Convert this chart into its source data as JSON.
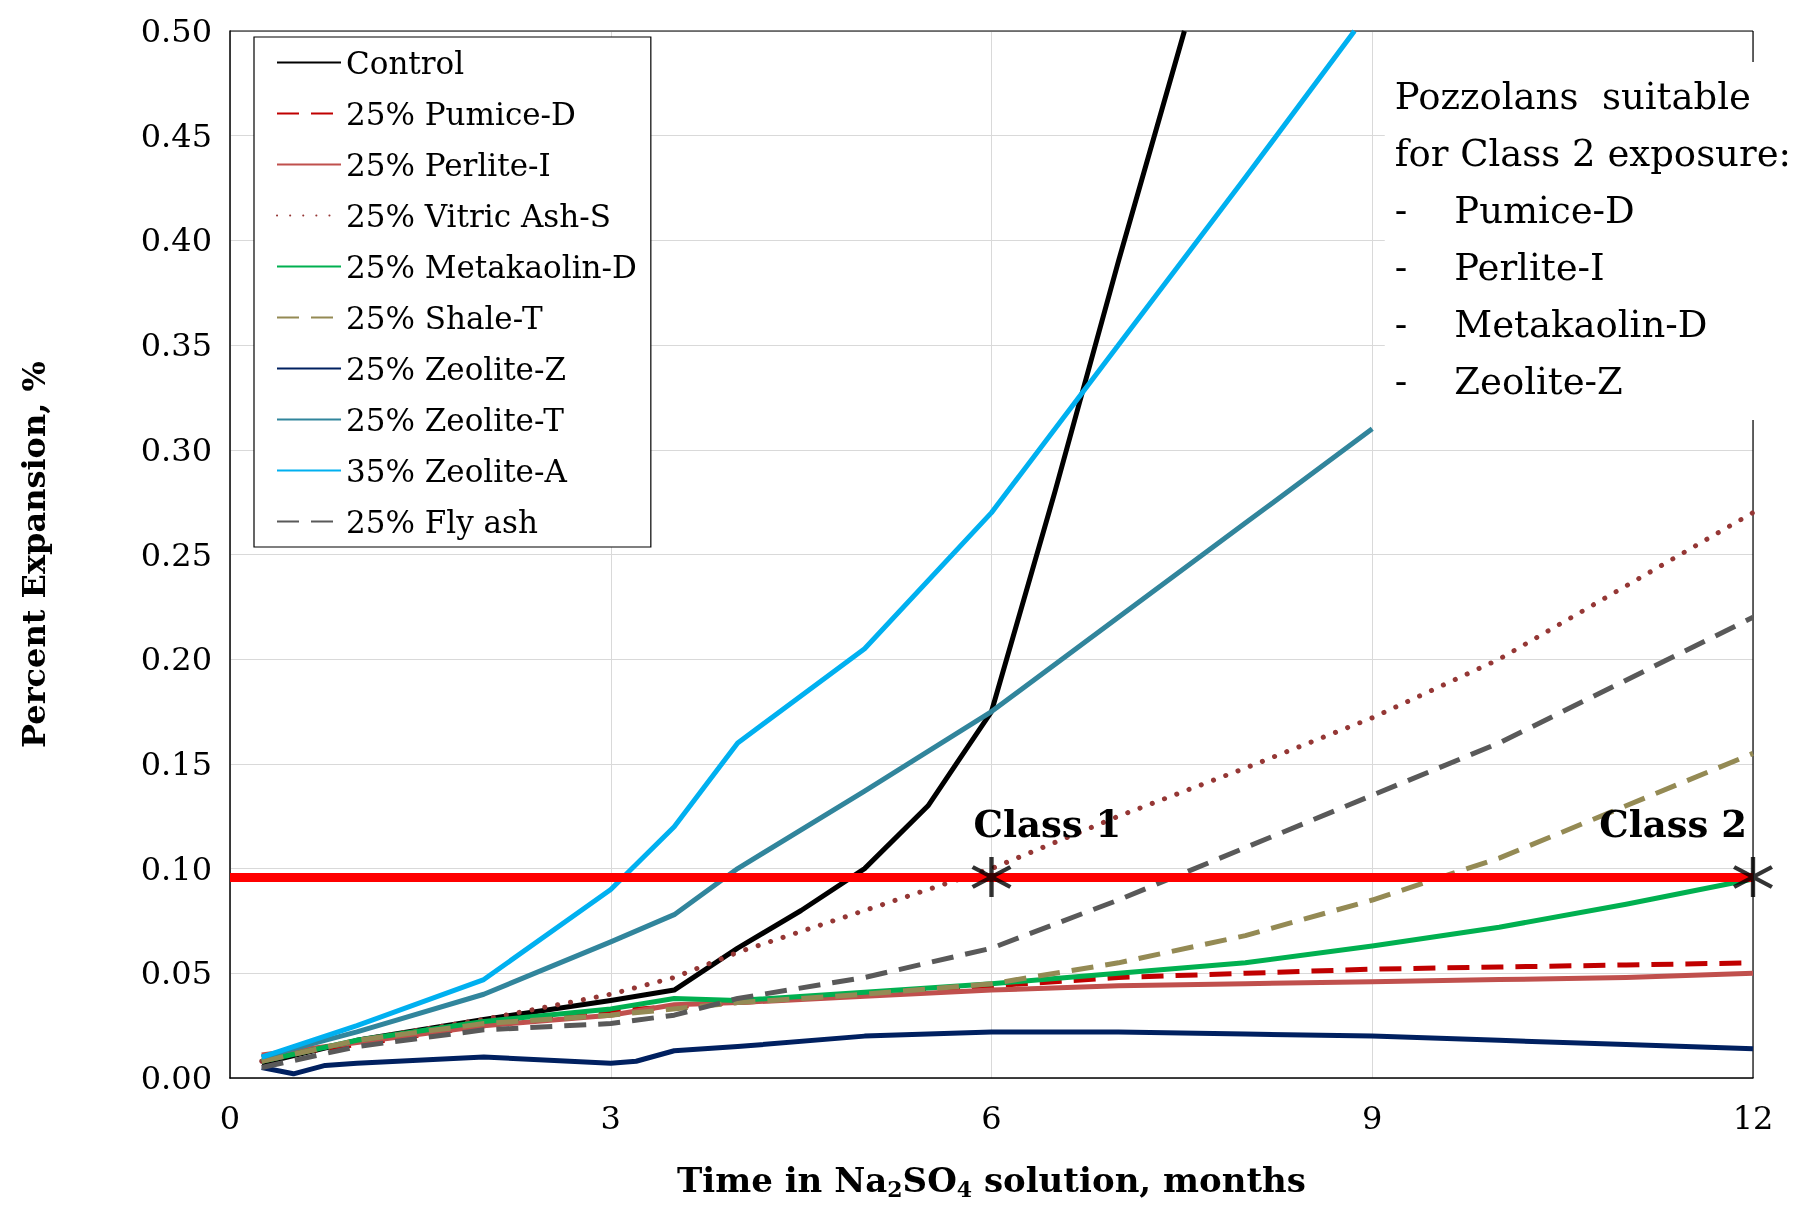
{
  "chart_data": {
    "type": "line",
    "xlabel": "Time in Na$_{2}$SO$_{4}$ solution, months",
    "ylabel": "Percent Expansion, %",
    "xlim": [
      0,
      12
    ],
    "xticks": [
      0,
      3,
      6,
      9,
      12
    ],
    "ylim": [
      0,
      0.5
    ],
    "yticks": [
      {
        "value": 0,
        "label": "0.00"
      },
      {
        "value": 0.05,
        "label": "0.05"
      },
      {
        "value": 0.1,
        "label": "0.10"
      },
      {
        "value": 0.15,
        "label": "0.15"
      },
      {
        "value": 0.2,
        "label": "0.20"
      },
      {
        "value": 0.25,
        "label": "0.25"
      },
      {
        "value": 0.3,
        "label": "0.30"
      },
      {
        "value": 0.35,
        "label": "0.35"
      },
      {
        "value": 0.4,
        "label": "0.40"
      },
      {
        "value": 0.45,
        "label": "0.45"
      },
      {
        "value": 0.5,
        "label": "0.50"
      }
    ],
    "grid": true,
    "legend": "top left",
    "marker": "none",
    "series": [
      {
        "name": "Control",
        "color": "#000000",
        "line_style": "solid",
        "x": [
          0.25,
          1,
          2,
          3,
          3.5,
          4,
          4.5,
          5,
          5.5,
          6,
          6.5,
          7,
          7.52
        ],
        "values": [
          0.007,
          0.018,
          0.028,
          0.037,
          0.042,
          0.062,
          0.08,
          0.1,
          0.13,
          0.175,
          0.28,
          0.39,
          0.5
        ]
      },
      {
        "name": "25% Pumice-D",
        "color": "#c00000",
        "line_style": "dashed",
        "x": [
          0.25,
          1,
          2,
          3,
          4,
          5,
          6,
          7,
          8,
          9,
          10,
          11,
          12
        ],
        "values": [
          0.01,
          0.016,
          0.025,
          0.032,
          0.036,
          0.04,
          0.044,
          0.048,
          0.05,
          0.052,
          0.053,
          0.054,
          0.055
        ]
      },
      {
        "name": "25% Perlite-I",
        "color": "#c0504d",
        "line_style": "solid",
        "x": [
          0.25,
          1,
          2,
          3,
          3.5,
          4,
          5,
          6,
          7,
          8,
          9,
          10,
          11,
          12
        ],
        "values": [
          0.011,
          0.017,
          0.025,
          0.03,
          0.035,
          0.036,
          0.039,
          0.042,
          0.044,
          0.045,
          0.046,
          0.047,
          0.048,
          0.05
        ]
      },
      {
        "name": "25% Vitric Ash-S",
        "color": "#953735",
        "line_style": "dotted",
        "x": [
          0.25,
          1,
          2,
          3,
          3.5,
          4,
          5,
          6,
          7,
          8,
          9,
          10,
          11,
          12
        ],
        "values": [
          0.008,
          0.018,
          0.028,
          0.04,
          0.048,
          0.06,
          0.08,
          0.1,
          0.125,
          0.148,
          0.172,
          0.2,
          0.235,
          0.27
        ]
      },
      {
        "name": "25% Metakaolin-D",
        "color": "#00b050",
        "line_style": "solid",
        "x": [
          0.25,
          1,
          2,
          3,
          3.5,
          4,
          5,
          6,
          7,
          8,
          9,
          10,
          11,
          12
        ],
        "values": [
          0.008,
          0.018,
          0.027,
          0.033,
          0.038,
          0.037,
          0.041,
          0.045,
          0.05,
          0.055,
          0.063,
          0.072,
          0.083,
          0.095
        ]
      },
      {
        "name": "25% Shale-T",
        "color": "#948a54",
        "line_style": "dashed",
        "x": [
          0.25,
          1,
          2,
          3,
          4,
          5,
          6,
          7,
          8,
          9,
          10,
          11,
          12
        ],
        "values": [
          0.008,
          0.018,
          0.026,
          0.03,
          0.036,
          0.04,
          0.045,
          0.055,
          0.068,
          0.085,
          0.105,
          0.13,
          0.155
        ]
      },
      {
        "name": "25% Zeolite-Z",
        "color": "#002060",
        "line_style": "solid",
        "x": [
          0.25,
          0.5,
          0.75,
          1,
          2,
          3,
          3.2,
          3.5,
          4,
          5,
          6,
          7,
          8,
          9,
          10,
          11,
          12
        ],
        "values": [
          0.005,
          0.002,
          0.006,
          0.007,
          0.01,
          0.007,
          0.008,
          0.013,
          0.015,
          0.02,
          0.022,
          0.022,
          0.021,
          0.02,
          0.018,
          0.016,
          0.014
        ]
      },
      {
        "name": "25% Zeolite-T",
        "color": "#31859c",
        "line_style": "solid",
        "x": [
          0.25,
          1,
          2,
          3,
          3.5,
          4,
          5,
          6,
          7,
          8,
          9
        ],
        "values": [
          0.01,
          0.022,
          0.04,
          0.065,
          0.078,
          0.1,
          0.137,
          0.175,
          0.22,
          0.265,
          0.31
        ]
      },
      {
        "name": "35% Zeolite-A",
        "color": "#00b0f0",
        "line_style": "solid",
        "x": [
          0.25,
          1,
          2,
          3,
          3.5,
          4,
          5,
          6,
          7,
          8,
          8.86
        ],
        "values": [
          0.01,
          0.025,
          0.047,
          0.09,
          0.12,
          0.16,
          0.205,
          0.27,
          0.35,
          0.43,
          0.5
        ]
      },
      {
        "name": "25% Fly ash",
        "color": "#595959",
        "line_style": "dashed",
        "x": [
          0.25,
          1,
          2,
          3,
          3.5,
          4,
          5,
          6,
          7,
          8,
          9,
          10,
          11,
          12
        ],
        "values": [
          0.005,
          0.015,
          0.023,
          0.026,
          0.03,
          0.038,
          0.048,
          0.062,
          0.085,
          0.11,
          0.135,
          0.16,
          0.19,
          0.22
        ]
      },
      {
        "type": "scatter",
        "marker": "star",
        "color": "#000000",
        "x": [
          6,
          12
        ],
        "values": [
          0.096,
          0.096
        ]
      }
    ],
    "ref_lines": [
      {
        "axis": "y",
        "value": 0.096,
        "color": "#ff0000"
      }
    ],
    "annotations": [
      {
        "text": "Class 1",
        "x": 6,
        "y": 0.096
      },
      {
        "text": "Class 2",
        "x": 12,
        "y": 0.096
      },
      "Pozzolans  suitable\nfor Class 2 exposure:\n-    Pumice-D\n-    Perlite-I\n-    Metakaolin-D\n-    Zeolite-Z"
    ]
  }
}
